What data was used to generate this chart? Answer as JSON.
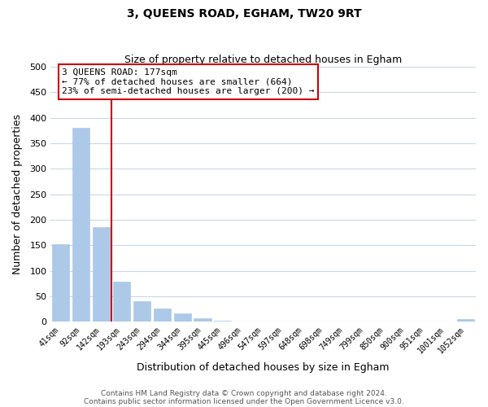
{
  "title": "3, QUEENS ROAD, EGHAM, TW20 9RT",
  "subtitle": "Size of property relative to detached houses in Egham",
  "xlabel": "Distribution of detached houses by size in Egham",
  "ylabel": "Number of detached properties",
  "bar_labels": [
    "41sqm",
    "92sqm",
    "142sqm",
    "193sqm",
    "243sqm",
    "294sqm",
    "344sqm",
    "395sqm",
    "445sqm",
    "496sqm",
    "547sqm",
    "597sqm",
    "648sqm",
    "698sqm",
    "749sqm",
    "799sqm",
    "850sqm",
    "900sqm",
    "951sqm",
    "1001sqm",
    "1052sqm"
  ],
  "bar_values": [
    152,
    380,
    185,
    78,
    40,
    25,
    17,
    7,
    2,
    0,
    0,
    0,
    0,
    0,
    0,
    0,
    0,
    0,
    0,
    0,
    5
  ],
  "bar_color": "#adc9e8",
  "bar_edge_color": "#adc9e8",
  "vline_color": "#cc0000",
  "vline_index": 3,
  "ylim": [
    0,
    500
  ],
  "yticks": [
    0,
    50,
    100,
    150,
    200,
    250,
    300,
    350,
    400,
    450,
    500
  ],
  "annotation_title": "3 QUEENS ROAD: 177sqm",
  "annotation_line1": "← 77% of detached houses are smaller (664)",
  "annotation_line2": "23% of semi-detached houses are larger (200) →",
  "annotation_box_color": "#ffffff",
  "annotation_box_edge": "#cc0000",
  "footer1": "Contains HM Land Registry data © Crown copyright and database right 2024.",
  "footer2": "Contains public sector information licensed under the Open Government Licence v3.0.",
  "background_color": "#ffffff",
  "grid_color": "#c8d8ec"
}
